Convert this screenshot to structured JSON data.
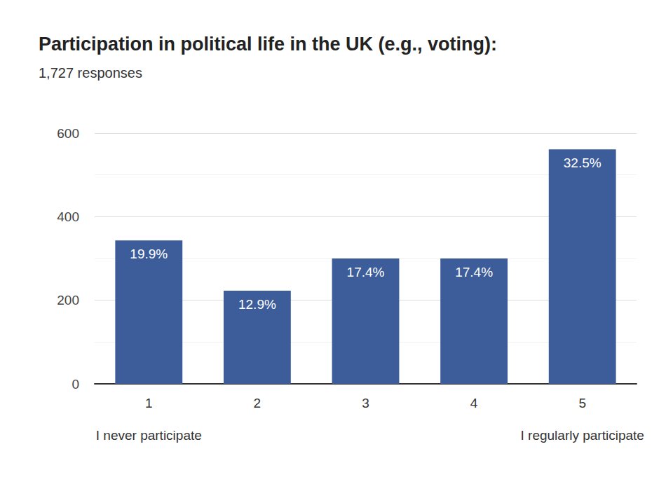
{
  "chart_data": {
    "type": "bar",
    "title": "Participation in political life in the UK (e.g., voting):",
    "subtitle": "1,727 responses",
    "categories": [
      "1",
      "2",
      "3",
      "4",
      "5"
    ],
    "values": [
      343,
      223,
      300,
      300,
      561
    ],
    "value_labels": [
      "19.9%",
      "12.9%",
      "17.4%",
      "17.4%",
      "32.5%"
    ],
    "color": "#3d5d9a",
    "ylim": [
      0,
      600
    ],
    "yticks": [
      0,
      200,
      400,
      600
    ],
    "grid": true,
    "data_labels": true,
    "annotations": [
      {
        "text": "I never participate",
        "category": "1"
      },
      {
        "text": "I regularly participate",
        "category": "5"
      }
    ]
  }
}
